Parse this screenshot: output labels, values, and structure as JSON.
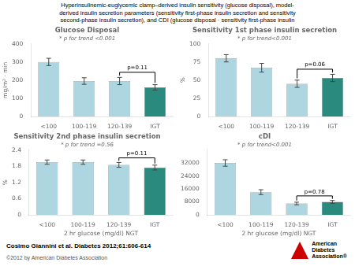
{
  "title": "Hyperinsulinemic-euglycemic clamp–derived insulin sensitivity (glucose disposal), model-\nderived insulin secretion parameters (sensitivity first-phase insulin secretion and sensitivity\nsecond-phase insulin secretion), and CDI (glucose disposal · sensitivity first-phase insulin",
  "annotations": [
    "Cosimo Giannini et al. Diabetes 2012;61:606-614",
    "©2012 by American Diabetes Association",
    "American\nDiabetes\nAssociation®"
  ],
  "chart_data": [
    {
      "type": "bar",
      "title": "Glucose Disposal",
      "subtitle": "* p for trend <0.001",
      "categories": [
        "<100",
        "100-119",
        "120-139",
        "IGT"
      ],
      "values": [
        300,
        195,
        195,
        160
      ],
      "errors": [
        20,
        18,
        20,
        15
      ],
      "colors": [
        "#aed6e0",
        "#aed6e0",
        "#aed6e0",
        "#2a8a7e"
      ],
      "ylabel": "mg/m² · min",
      "ylim": [
        0,
        400
      ],
      "yticks": [
        0,
        100,
        200,
        300,
        400
      ],
      "grid": false,
      "annotations": [
        {
          "text": "p=0.11",
          "between": [
            "120-139",
            "IGT"
          ]
        }
      ]
    },
    {
      "type": "bar",
      "title": "Sensitivity 1st phase insulin secretion",
      "subtitle": "* p for trend<0.001",
      "categories": [
        "<100",
        "100-119",
        "120-139",
        "IGT"
      ],
      "values": [
        80,
        67,
        45,
        53
      ],
      "errors": [
        5,
        6,
        5,
        5
      ],
      "colors": [
        "#aed6e0",
        "#aed6e0",
        "#aed6e0",
        "#2a8a7e"
      ],
      "ylabel": "%",
      "ylim": [
        0,
        100
      ],
      "yticks": [
        0,
        25,
        50,
        75,
        100
      ],
      "grid": false,
      "annotations": [
        {
          "text": "p=0.06",
          "between": [
            "120-139",
            "IGT"
          ]
        }
      ]
    },
    {
      "type": "bar",
      "title": "Sensitivity 2nd phase insulin secretion",
      "subtitle": "* p for trend =0.56",
      "categories": [
        "<100",
        "100-119",
        "120-139",
        "IGT"
      ],
      "values": [
        1.95,
        1.95,
        1.85,
        1.75
      ],
      "errors": [
        0.08,
        0.08,
        0.09,
        0.09
      ],
      "colors": [
        "#aed6e0",
        "#aed6e0",
        "#aed6e0",
        "#2a8a7e"
      ],
      "ylabel": "%",
      "xlabel": "2 hr glucose (mg/dl) NGT",
      "ylim": [
        0,
        2.4
      ],
      "yticks": [
        0,
        0.6,
        1.2,
        1.8,
        2.4
      ],
      "grid": false,
      "annotations": [
        {
          "text": "p=0.11",
          "between": [
            "120-139",
            "IGT"
          ]
        }
      ]
    },
    {
      "type": "bar",
      "title": "cDI",
      "subtitle": "* p for trend<0.001",
      "categories": [
        "<100",
        "100-119",
        "120-139",
        "IGT"
      ],
      "values": [
        32000,
        14000,
        7000,
        8000
      ],
      "errors": [
        2000,
        1500,
        800,
        900
      ],
      "colors": [
        "#aed6e0",
        "#aed6e0",
        "#aed6e0",
        "#2a8a7e"
      ],
      "xlabel": "2 hr glucose (mg/dl) NGT",
      "ylim": [
        0,
        40000
      ],
      "yticks": [
        0,
        8000,
        16000,
        24000,
        32000
      ],
      "grid": false,
      "annotations": [
        {
          "text": "p=0.78",
          "between": [
            "120-139",
            "IGT"
          ]
        }
      ]
    }
  ]
}
